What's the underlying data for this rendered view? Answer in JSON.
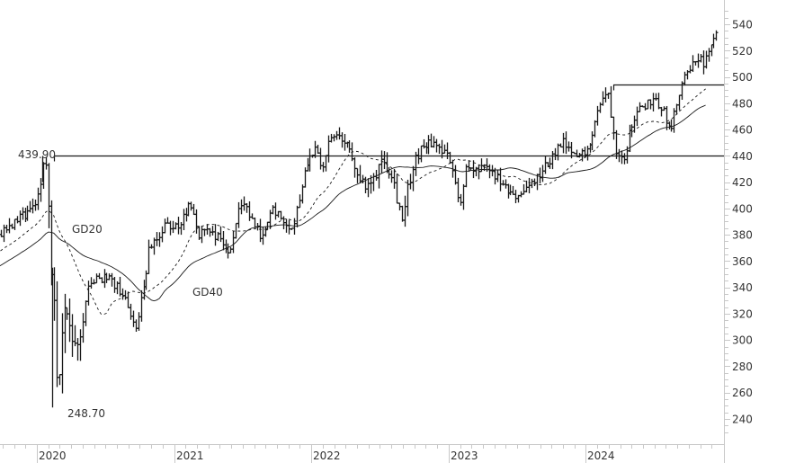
{
  "chart_data": {
    "type": "bar",
    "subtype": "ohlc",
    "title": "",
    "xlabel": "",
    "ylabel": "",
    "ylim": [
      225,
      550
    ],
    "y_ticks": [
      240,
      260,
      280,
      300,
      320,
      340,
      360,
      380,
      400,
      420,
      440,
      460,
      480,
      500,
      520,
      540
    ],
    "x_ticks": [
      "2020",
      "2021",
      "2022",
      "2023",
      "2024"
    ],
    "grid": false,
    "legend": "none",
    "annotations": [
      {
        "text": "439.90",
        "kind": "high-label"
      },
      {
        "text": "248.70",
        "kind": "low-label"
      },
      {
        "text": "GD20",
        "kind": "ma-label"
      },
      {
        "text": "GD40",
        "kind": "ma-label"
      }
    ],
    "horizontal_lines": [
      {
        "value": 440,
        "from_year": 2020.0,
        "label": "439.90"
      },
      {
        "value": 494,
        "from_year": 2024.2
      }
    ],
    "series": [
      {
        "name": "Price (OHLC bars)",
        "style": "ohlc"
      },
      {
        "name": "GD20",
        "style": "dashed",
        "period": 20
      },
      {
        "name": "GD40",
        "style": "solid",
        "period": 40
      }
    ],
    "price_keyframes": [
      [
        2019.7,
        378
      ],
      [
        2019.8,
        388
      ],
      [
        2019.9,
        395
      ],
      [
        2019.97,
        402
      ],
      [
        2020.02,
        415
      ],
      [
        2020.05,
        437
      ],
      [
        2020.07,
        430
      ],
      [
        2020.09,
        385
      ],
      [
        2020.12,
        330
      ],
      [
        2020.15,
        260
      ],
      [
        2020.18,
        300
      ],
      [
        2020.22,
        325
      ],
      [
        2020.27,
        285
      ],
      [
        2020.31,
        300
      ],
      [
        2020.36,
        335
      ],
      [
        2020.42,
        345
      ],
      [
        2020.5,
        348
      ],
      [
        2020.58,
        340
      ],
      [
        2020.66,
        328
      ],
      [
        2020.72,
        308
      ],
      [
        2020.76,
        330
      ],
      [
        2020.82,
        370
      ],
      [
        2020.88,
        375
      ],
      [
        2020.93,
        388
      ],
      [
        2020.98,
        382
      ],
      [
        2021.05,
        390
      ],
      [
        2021.12,
        405
      ],
      [
        2021.18,
        380
      ],
      [
        2021.24,
        385
      ],
      [
        2021.32,
        378
      ],
      [
        2021.4,
        365
      ],
      [
        2021.46,
        395
      ],
      [
        2021.52,
        402
      ],
      [
        2021.58,
        385
      ],
      [
        2021.65,
        378
      ],
      [
        2021.72,
        400
      ],
      [
        2021.8,
        392
      ],
      [
        2021.86,
        385
      ],
      [
        2021.92,
        412
      ],
      [
        2021.96,
        435
      ],
      [
        2022.02,
        445
      ],
      [
        2022.08,
        430
      ],
      [
        2022.14,
        455
      ],
      [
        2022.22,
        452
      ],
      [
        2022.3,
        440
      ],
      [
        2022.38,
        415
      ],
      [
        2022.44,
        418
      ],
      [
        2022.5,
        438
      ],
      [
        2022.58,
        430
      ],
      [
        2022.66,
        392
      ],
      [
        2022.72,
        425
      ],
      [
        2022.8,
        448
      ],
      [
        2022.88,
        450
      ],
      [
        2022.94,
        445
      ],
      [
        2023.02,
        435
      ],
      [
        2023.08,
        402
      ],
      [
        2023.12,
        430
      ],
      [
        2023.2,
        428
      ],
      [
        2023.3,
        430
      ],
      [
        2023.38,
        418
      ],
      [
        2023.46,
        408
      ],
      [
        2023.54,
        412
      ],
      [
        2023.62,
        420
      ],
      [
        2023.68,
        428
      ],
      [
        2023.76,
        440
      ],
      [
        2023.84,
        450
      ],
      [
        2023.9,
        438
      ],
      [
        2023.98,
        442
      ],
      [
        2024.04,
        455
      ],
      [
        2024.1,
        480
      ],
      [
        2024.16,
        488
      ],
      [
        2024.22,
        445
      ],
      [
        2024.28,
        440
      ],
      [
        2024.34,
        468
      ],
      [
        2024.42,
        478
      ],
      [
        2024.5,
        485
      ],
      [
        2024.58,
        470
      ],
      [
        2024.62,
        458
      ],
      [
        2024.66,
        480
      ],
      [
        2024.72,
        498
      ],
      [
        2024.8,
        515
      ],
      [
        2024.86,
        510
      ],
      [
        2024.92,
        525
      ],
      [
        2024.96,
        532
      ]
    ],
    "notable_points": {
      "high_2020": 439.9,
      "low_2020": 248.7,
      "last_close_approx": 530
    }
  },
  "axis": {
    "y_labels": [
      "240",
      "260",
      "280",
      "300",
      "320",
      "340",
      "360",
      "380",
      "400",
      "420",
      "440",
      "460",
      "480",
      "500",
      "520",
      "540"
    ],
    "x_labels": [
      "2020",
      "2021",
      "2022",
      "2023",
      "2024"
    ]
  },
  "labels": {
    "high": "439.90",
    "low": "248.70",
    "gd20": "GD20",
    "gd40": "GD40"
  },
  "colors": {
    "bars": "#1a1a1a",
    "ma": "#1a1a1a",
    "axis": "#c8c8c8",
    "text": "#333333"
  }
}
